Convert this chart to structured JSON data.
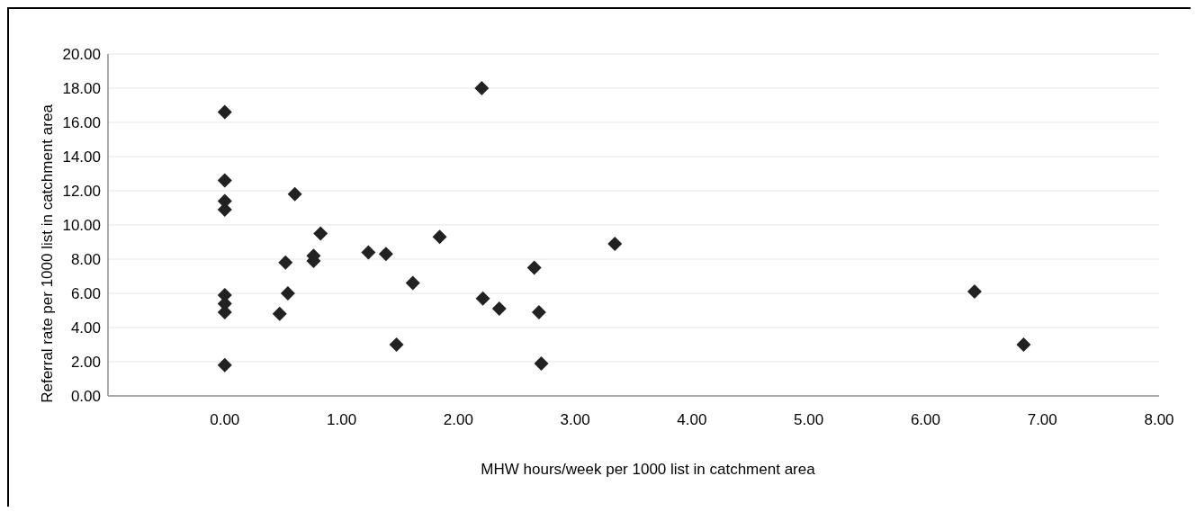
{
  "chart_data": {
    "type": "scatter",
    "xlabel": "MHW hours/week per 1000 list in catchment area",
    "ylabel": "Referral rate per 1000 list in catchment area",
    "x": [
      0,
      0,
      0,
      0,
      0,
      0,
      0,
      0,
      0.6,
      0.82,
      0.52,
      0.76,
      0.76,
      0.54,
      0.47,
      1.23,
      1.38,
      1.61,
      1.47,
      2.2,
      1.84,
      2.65,
      2.21,
      2.35,
      2.69,
      2.71,
      3.34,
      6.42,
      6.84
    ],
    "values": [
      16.6,
      12.6,
      11.4,
      10.9,
      5.9,
      5.4,
      4.9,
      1.8,
      11.8,
      9.5,
      7.8,
      8.2,
      7.9,
      6.0,
      4.8,
      8.4,
      8.3,
      6.6,
      3.0,
      18.0,
      9.3,
      7.5,
      5.7,
      5.1,
      4.9,
      1.9,
      8.9,
      6.1,
      3.0
    ],
    "color": "#222222",
    "marker": "diamond",
    "grid": "y",
    "xlim": [
      -1,
      8
    ],
    "xticks": [
      {
        "value": 0,
        "label": "0.00"
      },
      {
        "value": 1,
        "label": "1.00"
      },
      {
        "value": 2,
        "label": "2.00"
      },
      {
        "value": 3,
        "label": "3.00"
      },
      {
        "value": 4,
        "label": "4.00"
      },
      {
        "value": 5,
        "label": "5.00"
      },
      {
        "value": 6,
        "label": "6.00"
      },
      {
        "value": 7,
        "label": "7.00"
      },
      {
        "value": 8,
        "label": "8.00"
      }
    ],
    "ylim": [
      0,
      20
    ],
    "yticks": [
      {
        "value": 0,
        "label": "0.00"
      },
      {
        "value": 2,
        "label": "2.00"
      },
      {
        "value": 4,
        "label": "4.00"
      },
      {
        "value": 6,
        "label": "6.00"
      },
      {
        "value": 8,
        "label": "8.00"
      },
      {
        "value": 10,
        "label": "10.00"
      },
      {
        "value": 12,
        "label": "12.00"
      },
      {
        "value": 14,
        "label": "14.00"
      },
      {
        "value": 16,
        "label": "16.00"
      },
      {
        "value": 18,
        "label": "18.00"
      },
      {
        "value": 20,
        "label": "20.00"
      }
    ]
  }
}
